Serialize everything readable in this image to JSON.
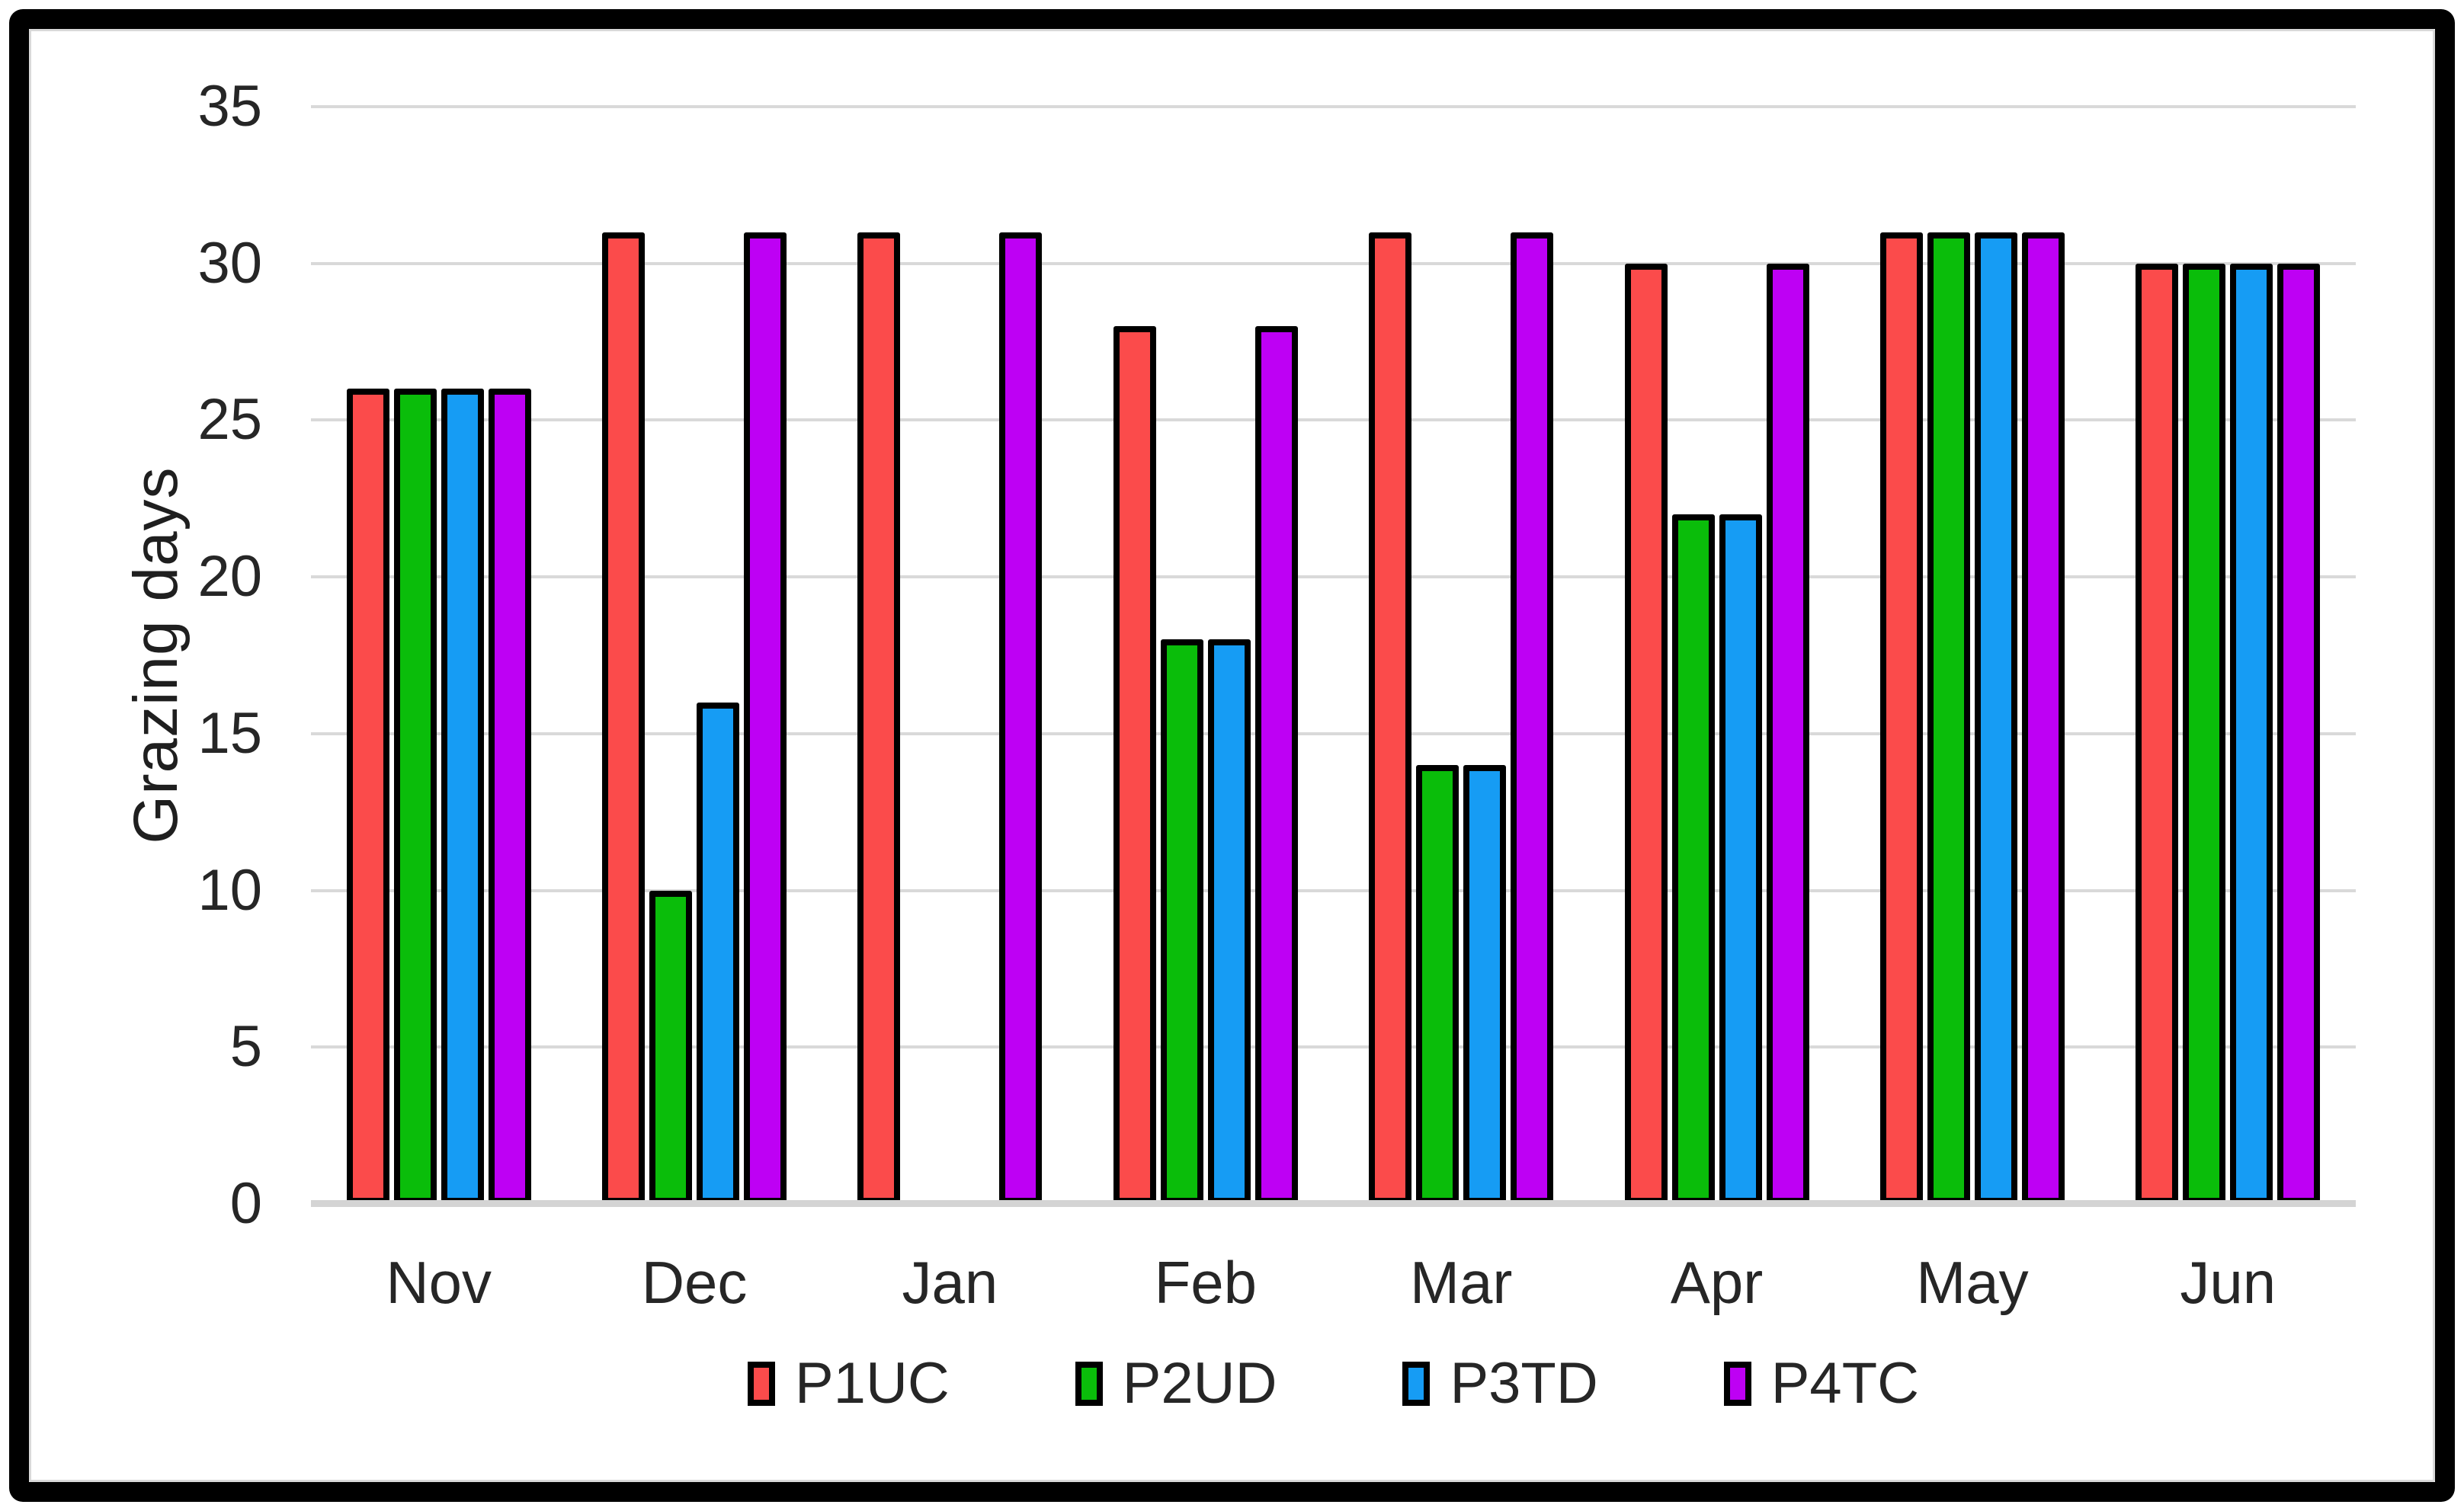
{
  "chart_data": {
    "type": "bar",
    "title": "",
    "xlabel": "",
    "ylabel": "Grazing days",
    "categories": [
      "Nov",
      "Dec",
      "Jan",
      "Feb",
      "Mar",
      "Apr",
      "May",
      "Jun"
    ],
    "series": [
      {
        "name": "P1UC",
        "color": "#FB4B4B",
        "values": [
          26,
          31,
          31,
          28,
          31,
          30,
          31,
          30
        ]
      },
      {
        "name": "P2UD",
        "color": "#0ABD0A",
        "values": [
          26,
          10,
          0,
          18,
          14,
          22,
          31,
          30
        ]
      },
      {
        "name": "P3TD",
        "color": "#169CF4",
        "values": [
          26,
          16,
          0,
          18,
          14,
          22,
          31,
          30
        ]
      },
      {
        "name": "P4TC",
        "color": "#BE00F4",
        "values": [
          26,
          31,
          31,
          28,
          31,
          30,
          31,
          30
        ]
      }
    ],
    "ylim": [
      0,
      35
    ],
    "ytick_step": 5,
    "yticks": [
      "0",
      "5",
      "10",
      "15",
      "20",
      "25",
      "30",
      "35"
    ],
    "grid": "horizontal",
    "legend_position": "bottom",
    "colors": {
      "background": "#FFFFFF",
      "frame": "#000000",
      "chart_border": "#D9D9D9",
      "gridline": "#D9D9D9",
      "axis_text": "#262626",
      "bar_outline": "#000000"
    }
  }
}
